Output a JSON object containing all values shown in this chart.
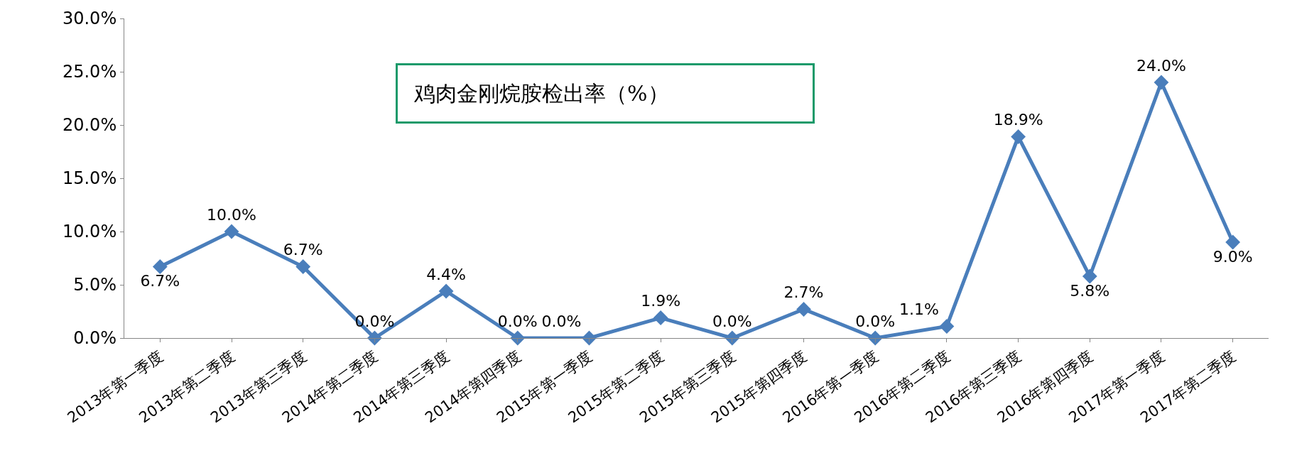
{
  "chart_data": {
    "type": "line",
    "title": "鸡肉金刚烷胺检出率（%）",
    "categories": [
      "2013年第一季度",
      "2013年第二季度",
      "2013年第三季度",
      "2014年第二季度",
      "2014年第三季度",
      "2014年第四季度",
      "2015年第一季度",
      "2015年第二季度",
      "2015年第三季度",
      "2015年第四季度",
      "2016年第一季度",
      "2016年第二季度",
      "2016年第三季度",
      "2016年第四季度",
      "2017年第一季度",
      "2017年第二季度"
    ],
    "series": [
      {
        "color": "#4a7ebb",
        "values": [
          6.7,
          10.0,
          6.7,
          0.0,
          4.4,
          0.0,
          0.0,
          1.9,
          0.0,
          2.7,
          0.0,
          1.1,
          18.9,
          5.8,
          24.0,
          9.0
        ],
        "value_labels": [
          "6.7%",
          "10.0%",
          "6.7%",
          "0.0%",
          "4.4%",
          "0.0%",
          "0.0%",
          "1.9%",
          "0.0%",
          "2.7%",
          "0.0%",
          "1.1%",
          "18.9%",
          "5.8%",
          "24.0%",
          "9.0%"
        ]
      }
    ],
    "ylim": [
      0,
      30
    ],
    "yticks": [
      {
        "value": 0,
        "label": "0.0%"
      },
      {
        "value": 5,
        "label": "5.0%"
      },
      {
        "value": 10,
        "label": "10.0%"
      },
      {
        "value": 15,
        "label": "15.0%"
      },
      {
        "value": 20,
        "label": "20.0%"
      },
      {
        "value": 25,
        "label": "25.0%"
      },
      {
        "value": 30,
        "label": "30.0%"
      }
    ],
    "grid": false,
    "legend": false,
    "marker": "diamond",
    "line_style": "solid"
  }
}
